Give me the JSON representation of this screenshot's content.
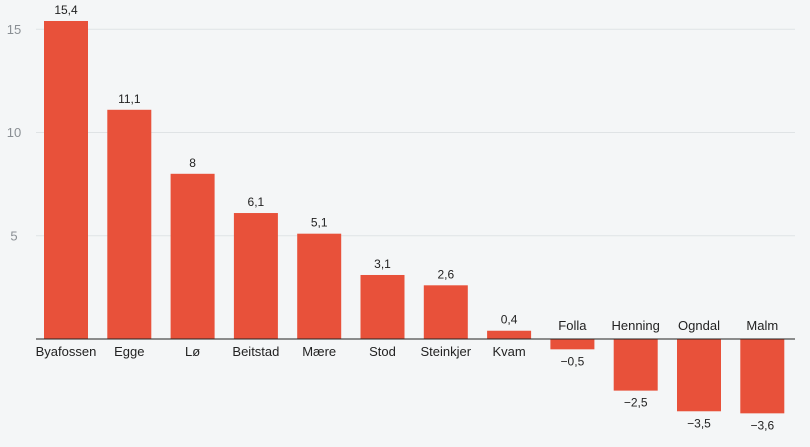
{
  "chart_data": {
    "type": "bar",
    "title": "",
    "xlabel": "",
    "ylabel": "",
    "categories": [
      "Byafossen",
      "Egge",
      "Lø",
      "Beitstad",
      "Mære",
      "Stod",
      "Steinkjer",
      "Kvam",
      "Folla",
      "Henning",
      "Ogndal",
      "Malm"
    ],
    "values": [
      15.4,
      11.1,
      8,
      6.1,
      5.1,
      3.1,
      2.6,
      0.4,
      -0.5,
      -2.5,
      -3.5,
      -3.6
    ],
    "value_labels": [
      "15,4",
      "11,1",
      "8",
      "6,1",
      "5,1",
      "3,1",
      "2,6",
      "0,4",
      "−0,5",
      "−2,5",
      "−3,5",
      "−3,6"
    ],
    "y_ticks": [
      5,
      10,
      15
    ],
    "y_tick_labels": [
      "5",
      "10",
      "15"
    ],
    "ylim": [
      -4,
      16.2
    ],
    "grid": true,
    "legend": "none",
    "bar_color": "#e8513a"
  }
}
